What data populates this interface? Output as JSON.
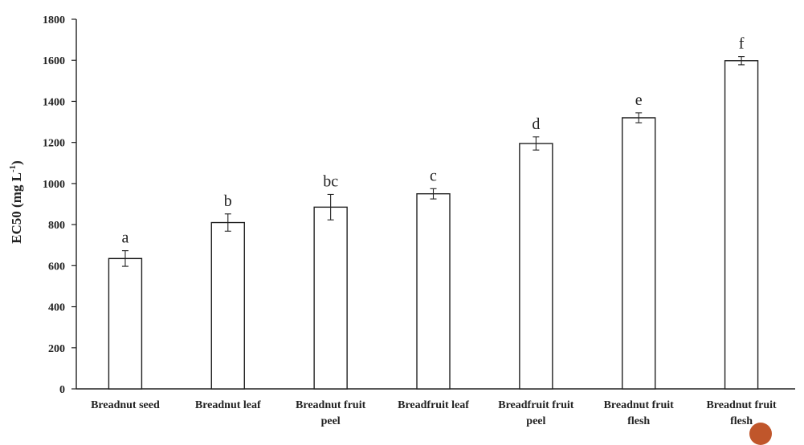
{
  "chart_data": {
    "type": "bar",
    "categories": [
      [
        "Breadnut seed"
      ],
      [
        "Breadnut leaf"
      ],
      [
        "Breadnut fruit",
        "peel"
      ],
      [
        "Breadfruit leaf"
      ],
      [
        "Breadfruit fruit",
        "peel"
      ],
      [
        "Breadnut fruit",
        "flesh"
      ],
      [
        "Breadnut fruit",
        "flesh"
      ]
    ],
    "values": [
      635,
      810,
      885,
      950,
      1195,
      1320,
      1598
    ],
    "error": [
      38,
      42,
      62,
      25,
      32,
      24,
      20
    ],
    "significance": [
      "a",
      "b",
      "bc",
      "c",
      "d",
      "e",
      "f"
    ],
    "ylabel": {
      "main": "EC50 (mg L",
      "sup": "-1",
      "end": ")"
    },
    "ylim": [
      0,
      1800
    ],
    "yticks": [
      0,
      200,
      400,
      600,
      800,
      1000,
      1200,
      1400,
      1600,
      1800
    ],
    "grid": false,
    "bar_fill": "#ffffff",
    "bar_stroke": "#222222",
    "corner_mark_color": "#c0562b"
  }
}
